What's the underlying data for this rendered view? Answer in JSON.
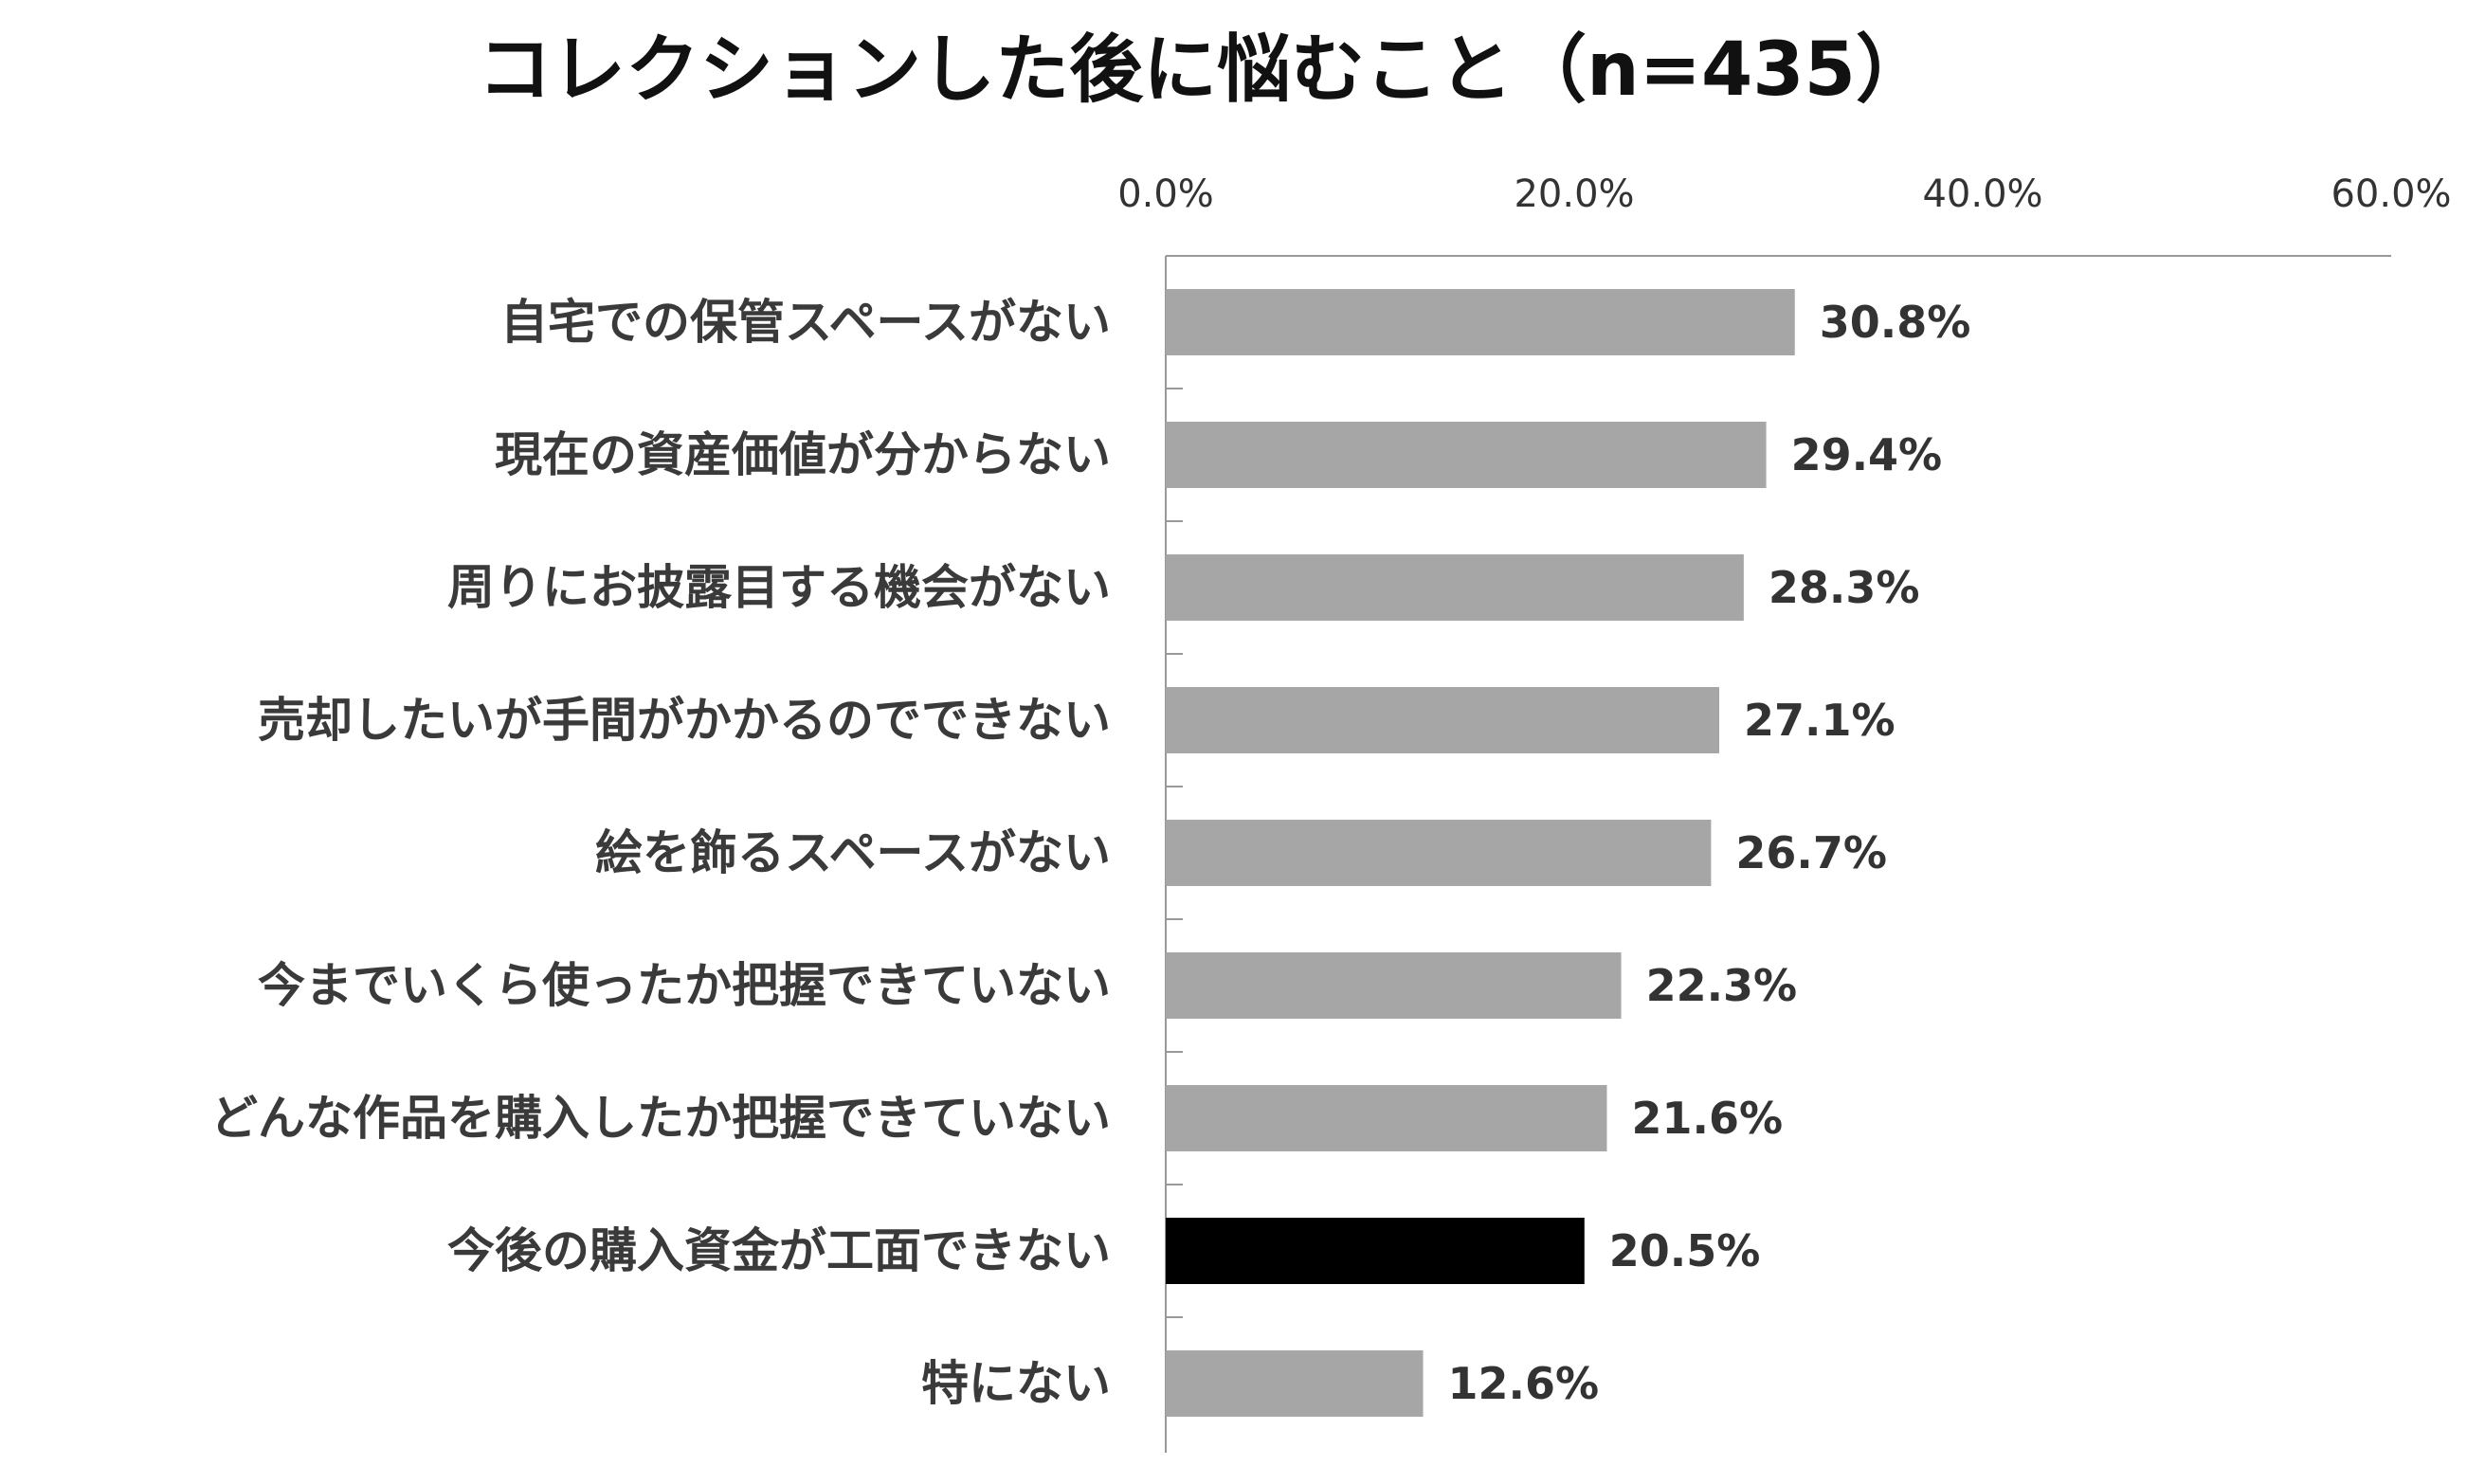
{
  "chart_data": {
    "type": "bar",
    "orientation": "horizontal",
    "title": "コレクションした後に悩むこと（n=435）",
    "xlabel": "",
    "ylabel": "",
    "xlim": [
      0,
      60
    ],
    "x_ticks": [
      "0.0%",
      "20.0%",
      "40.0%",
      "60.0%"
    ],
    "x_tick_values": [
      0,
      20,
      40,
      60
    ],
    "x_axis_position": "top",
    "grid": false,
    "legend": "none",
    "categories": [
      "自宅での保管スペースがない",
      "現在の資産価値が分からない",
      "周りにお披露目する機会がない",
      "売却したいが手間がかかるのでできない",
      "絵を飾るスペースがない",
      "今までいくら使ったか把握できていない",
      "どんな作品を購入したか把握できていない",
      "今後の購入資金が工面できない",
      "特にない"
    ],
    "values": [
      30.8,
      29.4,
      28.3,
      27.1,
      26.7,
      22.3,
      21.6,
      20.5,
      12.6
    ],
    "value_labels": [
      "30.8%",
      "29.4%",
      "28.3%",
      "27.1%",
      "26.7%",
      "22.3%",
      "21.6%",
      "20.5%",
      "12.6%"
    ],
    "highlight_index": 7,
    "colors": {
      "bar": "#a6a6a6",
      "highlight": "#000000",
      "axis": "#999999"
    }
  }
}
